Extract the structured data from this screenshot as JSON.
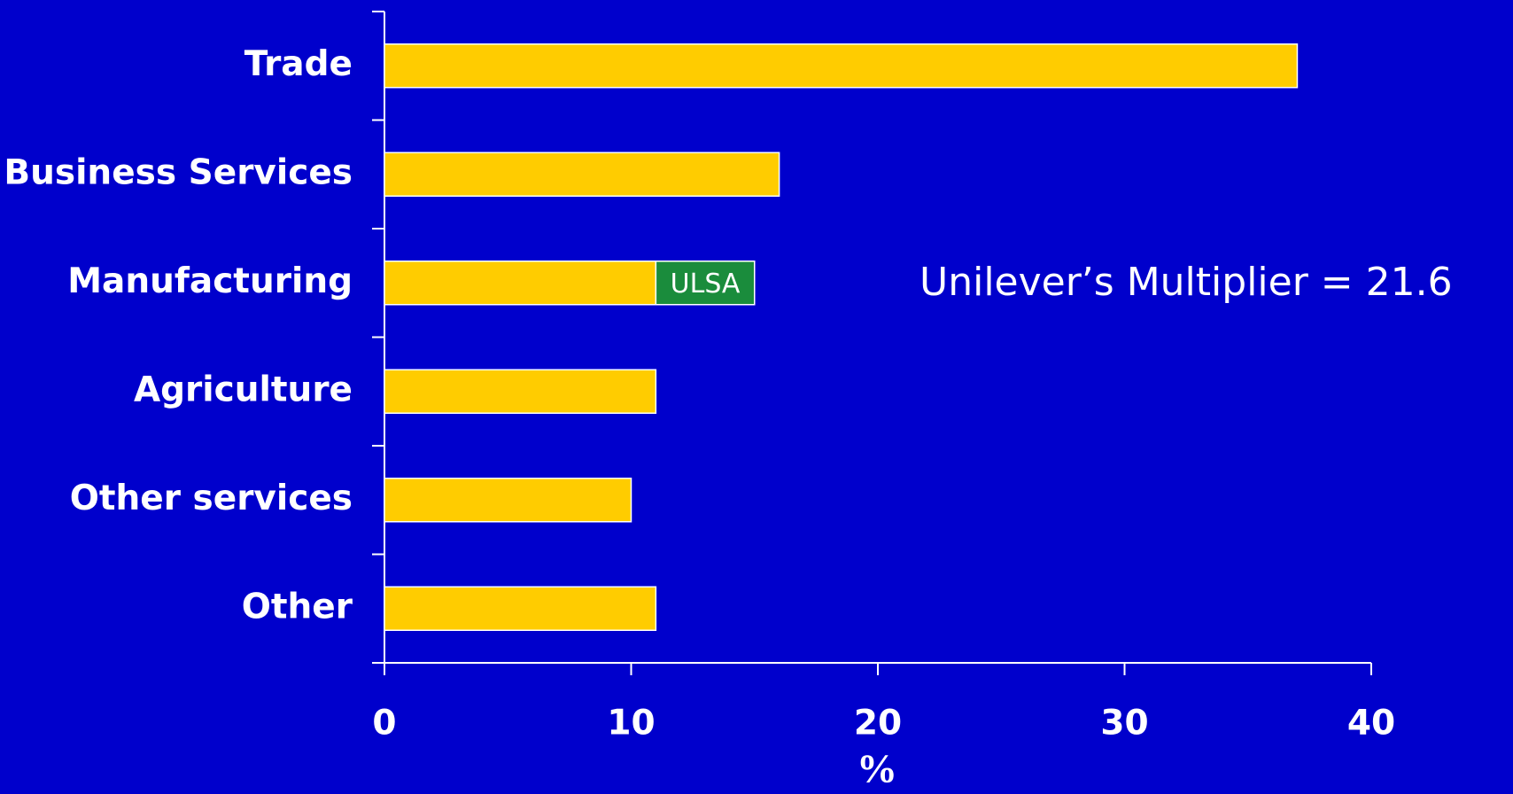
{
  "chart_data": {
    "type": "bar",
    "orientation": "horizontal",
    "stacked": true,
    "categories": [
      "Trade",
      "Business Services",
      "Manufacturing",
      "Agriculture",
      "Other services",
      "Other"
    ],
    "series": [
      {
        "color": "#ffcc00",
        "values": [
          37,
          16,
          11,
          11,
          10,
          11
        ]
      },
      {
        "name": "ULSA",
        "color": "#1a8c3c",
        "values": [
          null,
          null,
          4,
          null,
          null,
          null
        ]
      }
    ],
    "xlim": [
      0,
      40
    ],
    "xticks": [
      0,
      10,
      20,
      30,
      40
    ],
    "xlabel": "%",
    "annotation": "Unilever’s Multiplier = 21.6",
    "background": "#0000cc"
  }
}
